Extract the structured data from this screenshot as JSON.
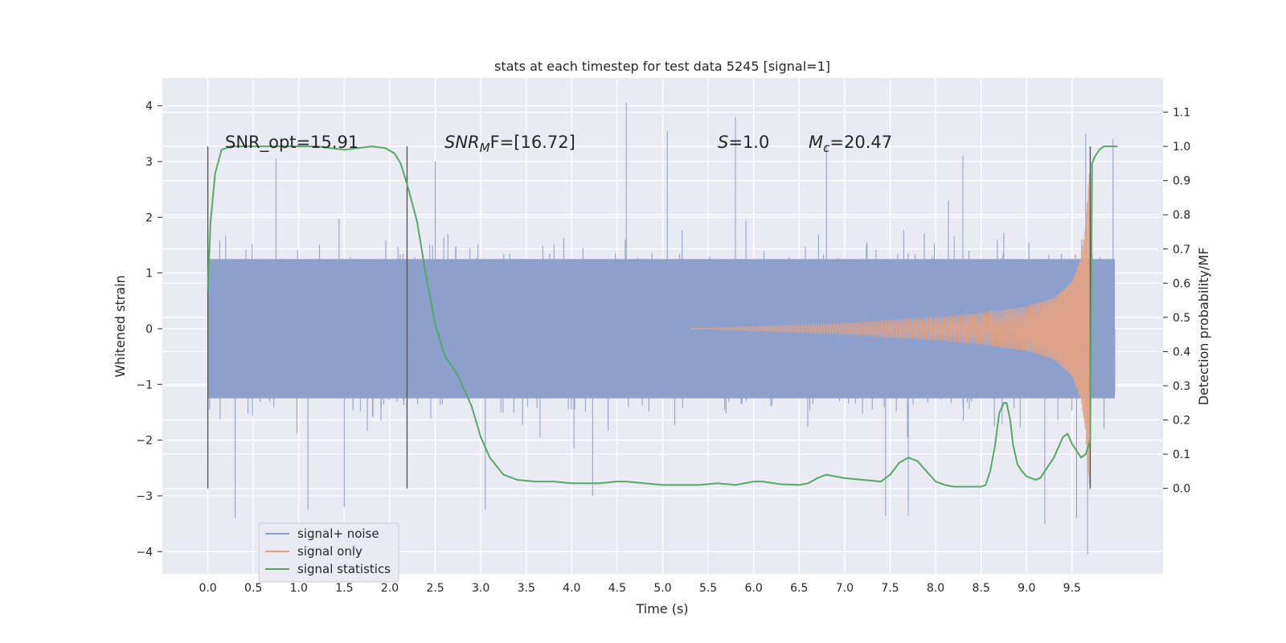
{
  "chart_data": {
    "type": "line",
    "title": "stats at each timestep for test data 5245 [signal=1]",
    "xlabel": "Time (s)",
    "ylabel": "Whitened strain",
    "ylabel_right": "Detection probability/MF",
    "xlim": [
      -0.5,
      10.5
    ],
    "ylim": [
      -4.4,
      4.5
    ],
    "ylim_right": [
      -0.25,
      1.2
    ],
    "x_ticks": [
      "0.0",
      "0.5",
      "1.0",
      "1.5",
      "2.0",
      "2.5",
      "3.0",
      "3.5",
      "4.0",
      "4.5",
      "5.0",
      "5.5",
      "6.0",
      "6.5",
      "7.0",
      "7.5",
      "8.0",
      "8.5",
      "9.0",
      "9.5"
    ],
    "y_ticks": [
      "−4",
      "−3",
      "−2",
      "−1",
      "0",
      "1",
      "2",
      "3",
      "4"
    ],
    "y_right_ticks": [
      "0.0",
      "0.1",
      "0.2",
      "0.3",
      "0.4",
      "0.5",
      "0.6",
      "0.7",
      "0.8",
      "0.9",
      "1.0",
      "1.1"
    ],
    "grid": true,
    "legend_position": "lower-left",
    "annotations": {
      "snr_opt": "SNR_opt=15.91",
      "snr_mf_main": "SNR",
      "snr_mf_sub": "M",
      "snr_mf_tail": "F=[16.72]",
      "s_main": "S",
      "s_tail": "=1.0",
      "mc_main": "M",
      "mc_sub": "c",
      "mc_tail": "=20.47"
    },
    "vertical_markers": [
      0.0,
      2.19,
      9.7
    ],
    "series": [
      {
        "name": "signal+ noise",
        "color": "#8da0cb",
        "axis": "left",
        "x_range": [
          0.0,
          9.97
        ],
        "core_amplitude": 1.25,
        "typical_peaks": [
          -2.5,
          2.6
        ],
        "notable_peaks": [
          {
            "x": 0.3,
            "y": -3.4
          },
          {
            "x": 0.75,
            "y": 3.05
          },
          {
            "x": 1.1,
            "y": -3.25
          },
          {
            "x": 1.5,
            "y": -3.2
          },
          {
            "x": 2.5,
            "y": 3.0
          },
          {
            "x": 3.05,
            "y": -3.25
          },
          {
            "x": 4.23,
            "y": -3.0
          },
          {
            "x": 4.6,
            "y": 4.05
          },
          {
            "x": 5.05,
            "y": 3.55
          },
          {
            "x": 5.8,
            "y": 3.8
          },
          {
            "x": 6.8,
            "y": 3.3
          },
          {
            "x": 7.45,
            "y": -3.35
          },
          {
            "x": 7.7,
            "y": -3.35
          },
          {
            "x": 8.3,
            "y": 3.1
          },
          {
            "x": 9.2,
            "y": -3.5
          },
          {
            "x": 9.55,
            "y": -3.4
          },
          {
            "x": 9.65,
            "y": 3.5
          },
          {
            "x": 9.67,
            "y": -4.05
          },
          {
            "x": 9.95,
            "y": 3.4
          }
        ]
      },
      {
        "name": "signal only",
        "color": "#e5a383",
        "axis": "left",
        "x_range": [
          5.3,
          9.7
        ],
        "envelope": [
          {
            "x": 5.3,
            "y": 0.0
          },
          {
            "x": 6.0,
            "y": 0.04
          },
          {
            "x": 7.0,
            "y": 0.1
          },
          {
            "x": 8.0,
            "y": 0.2
          },
          {
            "x": 8.5,
            "y": 0.28
          },
          {
            "x": 9.0,
            "y": 0.4
          },
          {
            "x": 9.3,
            "y": 0.55
          },
          {
            "x": 9.5,
            "y": 0.85
          },
          {
            "x": 9.6,
            "y": 1.3
          },
          {
            "x": 9.65,
            "y": 1.9
          },
          {
            "x": 9.68,
            "y": 2.6
          },
          {
            "x": 9.7,
            "y": 3.0
          }
        ]
      },
      {
        "name": "signal statistics",
        "color": "#55a868",
        "axis": "right",
        "x": [
          0.0,
          0.03,
          0.08,
          0.15,
          0.25,
          0.4,
          0.6,
          0.8,
          1.0,
          1.2,
          1.35,
          1.5,
          1.65,
          1.8,
          1.95,
          2.05,
          2.12,
          2.2,
          2.3,
          2.4,
          2.5,
          2.6,
          2.75,
          2.9,
          3.0,
          3.1,
          3.25,
          3.4,
          3.6,
          3.8,
          4.0,
          4.2,
          4.3,
          4.5,
          4.6,
          4.8,
          5.0,
          5.2,
          5.4,
          5.6,
          5.8,
          6.0,
          6.1,
          6.3,
          6.5,
          6.6,
          6.7,
          6.8,
          6.9,
          7.0,
          7.2,
          7.4,
          7.5,
          7.6,
          7.7,
          7.8,
          7.9,
          8.0,
          8.1,
          8.2,
          8.3,
          8.4,
          8.5,
          8.55,
          8.6,
          8.65,
          8.7,
          8.75,
          8.78,
          8.82,
          8.85,
          8.9,
          8.95,
          9.0,
          9.05,
          9.1,
          9.15,
          9.2,
          9.3,
          9.4,
          9.45,
          9.5,
          9.55,
          9.6,
          9.65,
          9.7,
          9.72,
          9.75,
          9.8,
          9.85,
          9.9,
          9.95,
          10.0
        ],
        "values": [
          0.58,
          0.78,
          0.92,
          0.99,
          1.0,
          1.0,
          1.0,
          1.0,
          1.0,
          1.0,
          0.995,
          0.99,
          0.995,
          1.0,
          0.995,
          0.98,
          0.95,
          0.88,
          0.78,
          0.62,
          0.48,
          0.39,
          0.33,
          0.24,
          0.15,
          0.09,
          0.04,
          0.025,
          0.02,
          0.02,
          0.015,
          0.015,
          0.015,
          0.02,
          0.02,
          0.015,
          0.01,
          0.01,
          0.01,
          0.015,
          0.01,
          0.02,
          0.02,
          0.012,
          0.01,
          0.015,
          0.03,
          0.04,
          0.035,
          0.03,
          0.025,
          0.02,
          0.04,
          0.075,
          0.09,
          0.08,
          0.05,
          0.02,
          0.01,
          0.005,
          0.005,
          0.005,
          0.005,
          0.01,
          0.05,
          0.12,
          0.22,
          0.25,
          0.25,
          0.2,
          0.13,
          0.07,
          0.05,
          0.035,
          0.03,
          0.025,
          0.03,
          0.05,
          0.09,
          0.15,
          0.16,
          0.13,
          0.11,
          0.09,
          0.1,
          0.14,
          0.95,
          0.97,
          0.99,
          1.0,
          1.0,
          1.0,
          1.0
        ]
      }
    ]
  }
}
